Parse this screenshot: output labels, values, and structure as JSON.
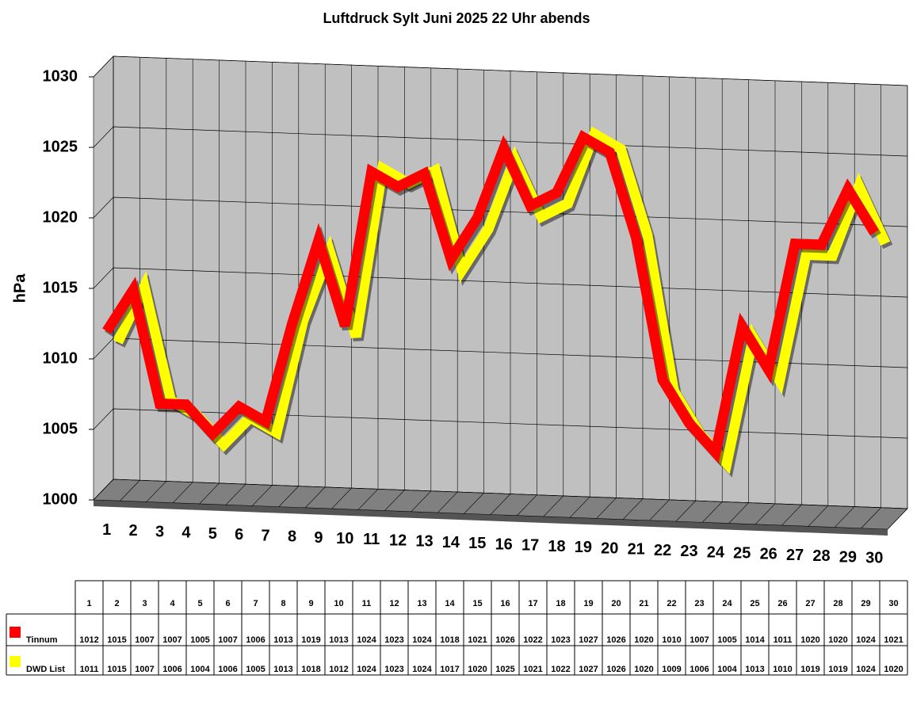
{
  "chart_data": {
    "type": "line",
    "title": "Luftdruck Sylt Juni 2025 22 Uhr abends",
    "y_label": "hPa",
    "categories": [
      "1",
      "2",
      "3",
      "4",
      "5",
      "6",
      "7",
      "8",
      "9",
      "10",
      "11",
      "12",
      "13",
      "14",
      "15",
      "16",
      "17",
      "18",
      "19",
      "20",
      "21",
      "22",
      "23",
      "24",
      "25",
      "26",
      "27",
      "28",
      "29",
      "30"
    ],
    "series": [
      {
        "name": "Tinnum",
        "color": "#ff0000",
        "values": [
          1012,
          1015,
          1007,
          1007,
          1005,
          1007,
          1006,
          1013,
          1019,
          1013,
          1024,
          1023,
          1024,
          1018,
          1021,
          1026,
          1022,
          1023,
          1027,
          1026,
          1020,
          1010,
          1007,
          1005,
          1014,
          1011,
          1020,
          1020,
          1024,
          1021
        ]
      },
      {
        "name": "DWD List",
        "color": "#ffff00",
        "values": [
          1011,
          1015,
          1007,
          1006,
          1004,
          1006,
          1005,
          1013,
          1018,
          1012,
          1024,
          1023,
          1024,
          1017,
          1020,
          1025,
          1021,
          1022,
          1027,
          1026,
          1020,
          1009,
          1006,
          1004,
          1013,
          1010,
          1019,
          1019,
          1024,
          1020
        ]
      }
    ],
    "ylim": [
      1000,
      1030
    ],
    "yticks": [
      1000,
      1005,
      1010,
      1015,
      1020,
      1025,
      1030
    ],
    "grid": true
  }
}
